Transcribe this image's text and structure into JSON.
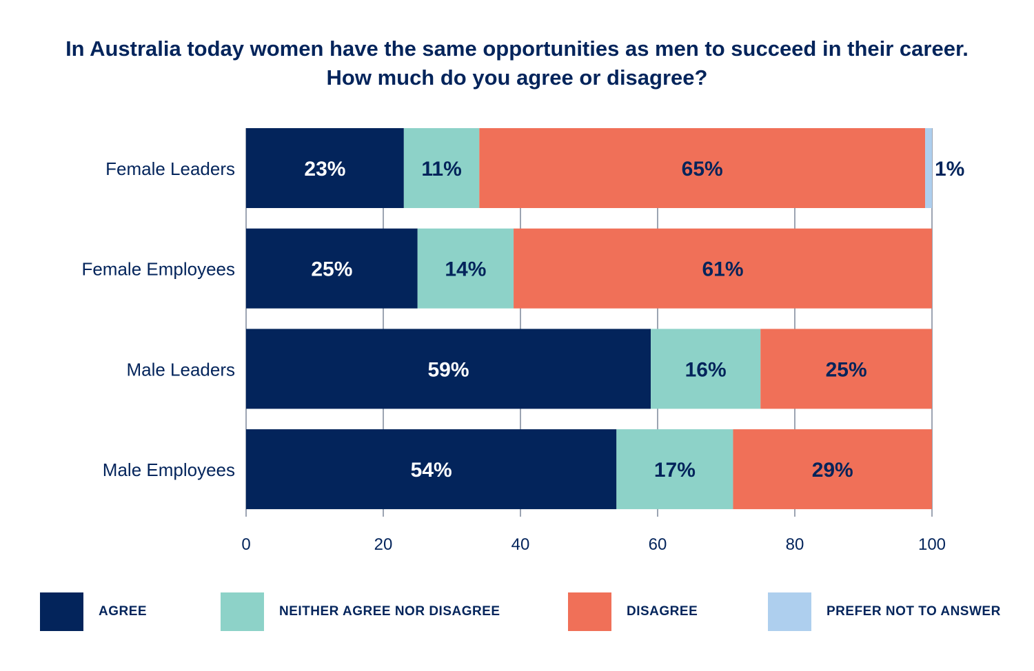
{
  "colors": {
    "agree": "#03245b",
    "neither": "#8dd2c8",
    "disagree": "#f07058",
    "prefer_not": "#aecfee",
    "text": "#03245b",
    "grid": "#3a4a66"
  },
  "chart_data": {
    "type": "bar",
    "orientation": "horizontal",
    "stacked": true,
    "title_lines": [
      "In Australia today women have the same opportunities as men to succeed in their career.",
      "How much do you agree or disagree?"
    ],
    "categories": [
      "Female Leaders",
      "Female Employees",
      "Male Leaders",
      "Male Employees"
    ],
    "series": [
      {
        "name": "AGREE",
        "key": "agree",
        "values": [
          23,
          25,
          59,
          54
        ],
        "labels": [
          "23%",
          "25%",
          "59%",
          "54%"
        ]
      },
      {
        "name": "NEITHER AGREE NOR DISAGREE",
        "key": "neither",
        "values": [
          11,
          14,
          16,
          17
        ],
        "labels": [
          "11%",
          "14%",
          "16%",
          "17%"
        ]
      },
      {
        "name": "DISAGREE",
        "key": "disagree",
        "values": [
          65,
          61,
          25,
          29
        ],
        "labels": [
          "65%",
          "61%",
          "25%",
          "29%"
        ]
      },
      {
        "name": "PREFER NOT TO ANSWER",
        "key": "prefer_not",
        "values": [
          1,
          0,
          0,
          0
        ],
        "labels": [
          "1%",
          "",
          "",
          ""
        ]
      }
    ],
    "xlim": [
      0,
      100
    ],
    "xticks": [
      0,
      20,
      40,
      60,
      80,
      100
    ],
    "xtick_labels": [
      "0",
      "20",
      "40",
      "60",
      "80",
      "100"
    ],
    "grid": true,
    "legend_position": "bottom"
  }
}
